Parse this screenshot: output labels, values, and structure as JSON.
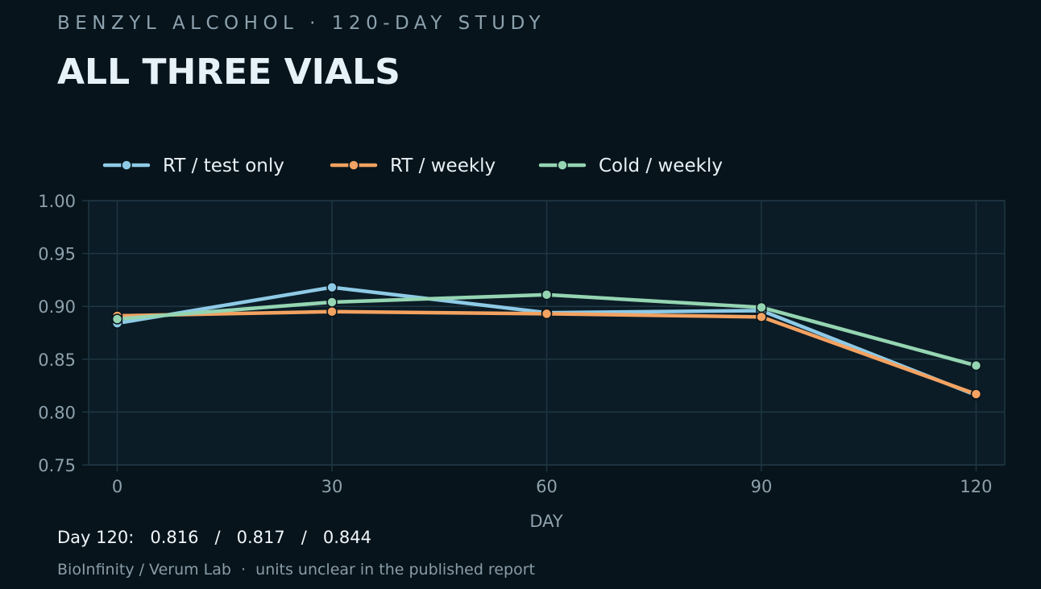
{
  "header": {
    "kicker": "BENZYL ALCOHOL · 120-DAY STUDY",
    "title": "ALL THREE VIALS"
  },
  "chart_data": {
    "type": "line",
    "title": "ALL THREE VIALS",
    "subtitle": "BENZYL ALCOHOL · 120-DAY STUDY",
    "xlabel": "DAY",
    "ylabel": "",
    "x": [
      0,
      30,
      60,
      90,
      120
    ],
    "x_tick_labels": [
      "0",
      "30",
      "60",
      "90",
      "120"
    ],
    "y_tick_labels": [
      "0.75",
      "0.80",
      "0.85",
      "0.90",
      "0.95",
      "1.00"
    ],
    "y_ticks": [
      0.75,
      0.8,
      0.85,
      0.9,
      0.95,
      1.0
    ],
    "xlim": [
      -4,
      124
    ],
    "ylim": [
      0.75,
      1.0
    ],
    "grid": true,
    "legend_position": "top-left",
    "series": [
      {
        "name": "RT / test only",
        "color": "#8ecae6",
        "values": [
          0.884,
          0.918,
          0.894,
          0.896,
          0.816
        ]
      },
      {
        "name": "RT / weekly",
        "color": "#f4a261",
        "values": [
          0.891,
          0.895,
          0.893,
          0.89,
          0.817
        ]
      },
      {
        "name": "Cold / weekly",
        "color": "#95d5b2",
        "values": [
          0.888,
          0.904,
          0.911,
          0.899,
          0.844
        ]
      }
    ]
  },
  "footer": {
    "day_label": "Day 120:",
    "values": [
      "0.816",
      "0.817",
      "0.844"
    ],
    "separator": "/",
    "source": "BioInfinity / Verum Lab  ·  units unclear in the published report"
  },
  "colors": {
    "background": "#07141c",
    "plot_background": "#0b1c26",
    "grid": "#1e3642"
  }
}
